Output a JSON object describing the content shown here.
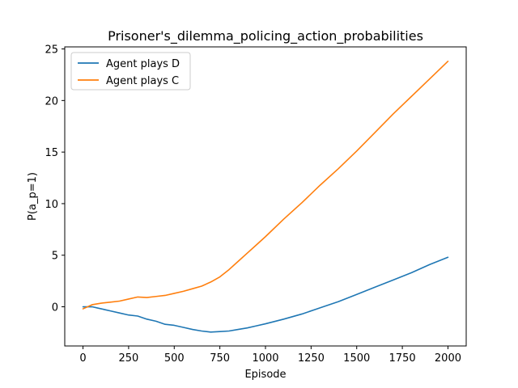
{
  "chart_data": {
    "type": "line",
    "title": "Prisoner's_dilemma_policing_action_probabilities",
    "xlabel": "Episode",
    "ylabel": "P(a_p=1)",
    "xlim": [
      -100,
      2100
    ],
    "ylim": [
      -3.8,
      25.2
    ],
    "xticks": [
      0,
      250,
      500,
      750,
      1000,
      1250,
      1500,
      1750,
      2000
    ],
    "yticks": [
      0,
      5,
      10,
      15,
      20,
      25
    ],
    "grid": false,
    "legend": "top-left",
    "series": [
      {
        "name": "Agent plays D",
        "color": "#1f77b4",
        "x": [
          0,
          50,
          100,
          150,
          200,
          250,
          300,
          350,
          400,
          450,
          500,
          550,
          600,
          650,
          700,
          750,
          800,
          850,
          900,
          950,
          1000,
          1100,
          1200,
          1300,
          1400,
          1500,
          1600,
          1700,
          1800,
          1900,
          2000
        ],
        "y": [
          0.0,
          0.0,
          -0.2,
          -0.4,
          -0.6,
          -0.8,
          -0.9,
          -1.2,
          -1.4,
          -1.7,
          -1.8,
          -2.0,
          -2.2,
          -2.35,
          -2.45,
          -2.4,
          -2.35,
          -2.2,
          -2.05,
          -1.85,
          -1.65,
          -1.2,
          -0.7,
          -0.1,
          0.5,
          1.2,
          1.9,
          2.6,
          3.3,
          4.1,
          4.8
        ]
      },
      {
        "name": "Agent plays C",
        "color": "#ff7f0e",
        "x": [
          0,
          50,
          100,
          150,
          200,
          250,
          300,
          350,
          400,
          450,
          500,
          550,
          600,
          650,
          700,
          750,
          800,
          850,
          900,
          950,
          1000,
          1100,
          1200,
          1300,
          1400,
          1500,
          1600,
          1700,
          1800,
          1900,
          2000
        ],
        "y": [
          -0.2,
          0.2,
          0.35,
          0.45,
          0.55,
          0.75,
          0.95,
          0.9,
          1.0,
          1.1,
          1.3,
          1.5,
          1.75,
          2.0,
          2.4,
          2.9,
          3.6,
          4.4,
          5.2,
          6.0,
          6.8,
          8.5,
          10.1,
          11.8,
          13.4,
          15.1,
          16.9,
          18.7,
          20.4,
          22.1,
          23.8
        ]
      }
    ]
  }
}
